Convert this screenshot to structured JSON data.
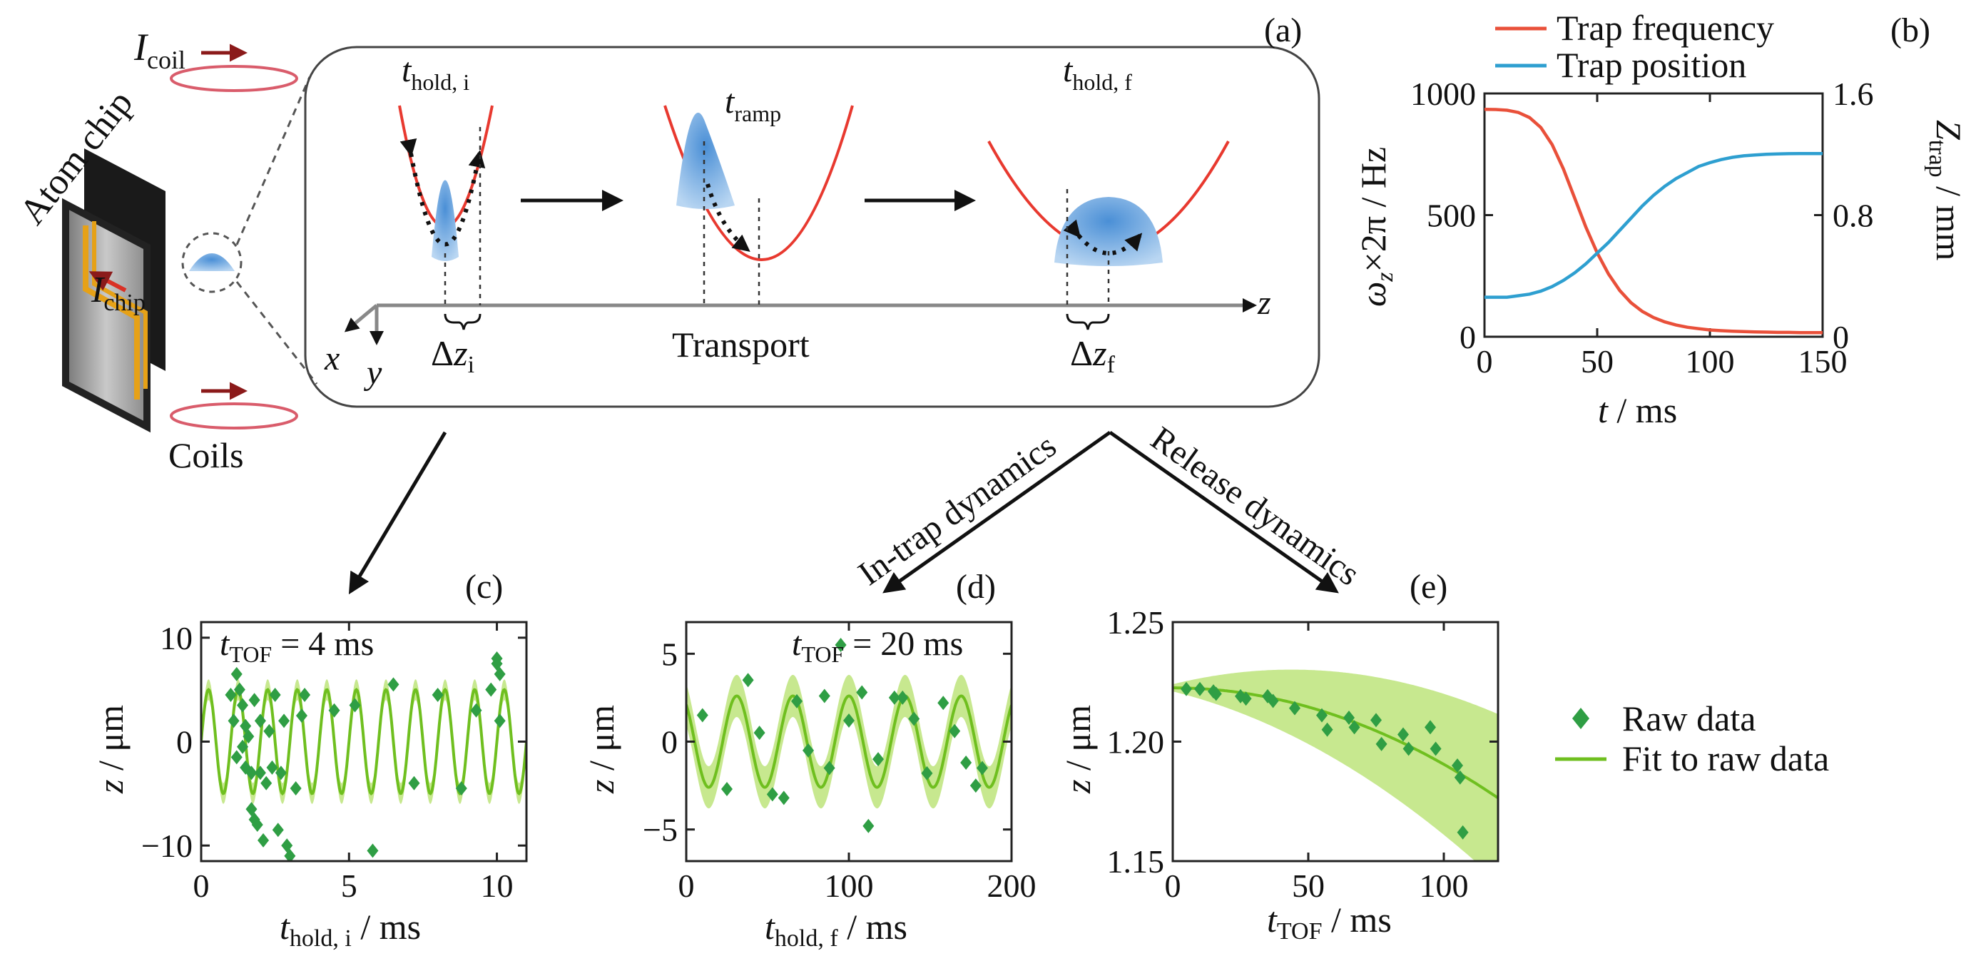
{
  "colors": {
    "trap_frequency": "#e9503a",
    "trap_position": "#2e9fd0",
    "data_point": "#2f9e44",
    "fit_line": "#6fbf1f",
    "fit_band": "#c7e88f",
    "parabola": "#e8392f",
    "cloud": "#5b9fdc",
    "coil": "#d95c6b",
    "coil_arrow": "#8b1a1a"
  },
  "schematic": {
    "coil_current": {
      "I": "I",
      "sub": "coil"
    },
    "chip_current": {
      "I": "I",
      "sub": "chip"
    },
    "atom_chip_label": "Atom chip",
    "coils_label": "Coils",
    "panel_label": "(a)",
    "t_hold_i": {
      "t": "t",
      "sub": "hold, i"
    },
    "t_ramp": {
      "t": "t",
      "sub": "ramp"
    },
    "t_hold_f": {
      "t": "t",
      "sub": "hold, f"
    },
    "delta_z_i": {
      "d": "Δ",
      "z": "z",
      "sub": "i"
    },
    "delta_z_f": {
      "d": "Δ",
      "z": "z",
      "sub": "f"
    },
    "transport_label": "Transport",
    "axis_x": "x",
    "axis_y": "y",
    "axis_z": "z",
    "in_trap_label": "In-trap dynamics",
    "release_label": "Release dynamics"
  },
  "legend_b": {
    "frequency": "Trap frequency",
    "position": "Trap position"
  },
  "legend_de": {
    "raw": "Raw data",
    "fit": "Fit to raw data"
  },
  "panels": {
    "b": {
      "label": "(b)",
      "ylabel_left": {
        "omega": "ω",
        "sub": "z",
        "rest": "×2π / Hz"
      },
      "ylabel_right": {
        "Z": "Z",
        "sub": "trap",
        "rest": " / mm"
      },
      "xlabel": {
        "t": "t",
        "rest": " / ms"
      }
    },
    "c": {
      "label": "(c)",
      "annot": {
        "t": "t",
        "sub": "TOF",
        "rest": " = 4 ms"
      },
      "ylabel": {
        "z": "z",
        "rest": " / μm"
      },
      "xlabel": {
        "t": "t",
        "sub": "hold, i",
        "rest": " / ms"
      }
    },
    "d": {
      "label": "(d)",
      "annot": {
        "t": "t",
        "sub": "TOF",
        "rest": " = 20 ms"
      },
      "ylabel": {
        "z": "z",
        "rest": " / μm"
      },
      "xlabel": {
        "t": "t",
        "sub": "hold, f",
        "rest": " / ms"
      }
    },
    "e": {
      "label": "(e)",
      "ylabel": {
        "z": "z",
        "rest": " / μm"
      },
      "xlabel": {
        "t": "t",
        "sub": "TOF",
        "rest": " / ms"
      }
    }
  },
  "chart_data": [
    {
      "id": "b",
      "type": "line",
      "xlabel": "t / ms",
      "ylabel": "ωz×2π / Hz",
      "y2label": "Ztrap / mm",
      "xlim": [
        0,
        150
      ],
      "ylim": [
        0,
        1000
      ],
      "y2lim": [
        0,
        1.6
      ],
      "xticks": [
        "0",
        "50",
        "100",
        "150"
      ],
      "yticks": [
        "0",
        "500",
        "1000"
      ],
      "y2ticks": [
        "0",
        "0.8",
        "1.6"
      ],
      "x": [
        0,
        5,
        10,
        15,
        20,
        25,
        30,
        35,
        40,
        45,
        50,
        55,
        60,
        65,
        70,
        75,
        80,
        85,
        90,
        95,
        100,
        105,
        110,
        115,
        120,
        125,
        130,
        135,
        140,
        145,
        150
      ],
      "series": [
        {
          "name": "Trap frequency",
          "axis": "left",
          "values": [
            935,
            934,
            931,
            922,
            901,
            860,
            790,
            690,
            570,
            450,
            345,
            258,
            190,
            140,
            104,
            79,
            61,
            48,
            39,
            33,
            28,
            25,
            23,
            21,
            20,
            19,
            18,
            18,
            17,
            17,
            17
          ]
        },
        {
          "name": "Trap position",
          "axis": "right",
          "values": [
            0.26,
            0.26,
            0.26,
            0.27,
            0.28,
            0.3,
            0.33,
            0.37,
            0.42,
            0.48,
            0.55,
            0.62,
            0.7,
            0.78,
            0.86,
            0.93,
            0.99,
            1.04,
            1.08,
            1.12,
            1.145,
            1.165,
            1.18,
            1.19,
            1.195,
            1.2,
            1.202,
            1.204,
            1.205,
            1.205,
            1.205
          ]
        }
      ]
    },
    {
      "id": "c",
      "type": "scatter",
      "xlabel": "thold, i / ms",
      "ylabel": "z / μm",
      "xlim": [
        0,
        11
      ],
      "ylim": [
        -11.5,
        11.5
      ],
      "xticks": [
        "0",
        "5",
        "10"
      ],
      "yticks": [
        "−10",
        "0",
        "10"
      ],
      "fit": {
        "amplitude": 5.0,
        "offset": 0,
        "period": 1.0,
        "phase": 0.0,
        "band": 1.0
      },
      "points": [
        [
          1.0,
          4.5
        ],
        [
          1.1,
          2.0
        ],
        [
          1.2,
          6.5
        ],
        [
          1.2,
          -1.5
        ],
        [
          1.3,
          5.0
        ],
        [
          1.4,
          3.5
        ],
        [
          1.4,
          -0.5
        ],
        [
          1.5,
          1.5
        ],
        [
          1.5,
          -2.5
        ],
        [
          1.6,
          0.5
        ],
        [
          1.7,
          -6.5
        ],
        [
          1.7,
          -3.0
        ],
        [
          1.8,
          -7.5
        ],
        [
          1.8,
          4.0
        ],
        [
          1.9,
          -8.0
        ],
        [
          2.0,
          -3.0
        ],
        [
          2.0,
          2.0
        ],
        [
          2.1,
          -9.5
        ],
        [
          2.2,
          -4.0
        ],
        [
          2.3,
          1.0
        ],
        [
          2.4,
          -2.5
        ],
        [
          2.5,
          4.5
        ],
        [
          2.6,
          -8.5
        ],
        [
          2.7,
          -3.0
        ],
        [
          2.8,
          2.0
        ],
        [
          2.9,
          -10.0
        ],
        [
          3.0,
          -11.0
        ],
        [
          3.2,
          -4.5
        ],
        [
          3.4,
          2.5
        ],
        [
          3.5,
          4.5
        ],
        [
          4.5,
          3.0
        ],
        [
          5.2,
          3.5
        ],
        [
          5.8,
          -10.5
        ],
        [
          6.5,
          5.5
        ],
        [
          7.2,
          -4.0
        ],
        [
          8.0,
          4.5
        ],
        [
          8.8,
          -4.5
        ],
        [
          9.3,
          3.0
        ],
        [
          9.8,
          5.0
        ],
        [
          10.0,
          7.5
        ],
        [
          10.0,
          8.0
        ],
        [
          10.1,
          2.0
        ],
        [
          10.1,
          6.5
        ]
      ]
    },
    {
      "id": "d",
      "type": "scatter",
      "xlabel": "thold, f / ms",
      "ylabel": "z / μm",
      "xlim": [
        0,
        200
      ],
      "ylim": [
        -6.8,
        6.8
      ],
      "xticks": [
        "0",
        "100",
        "200"
      ],
      "yticks": [
        "−5",
        "0",
        "5"
      ],
      "fit": {
        "amplitude": 2.6,
        "offset": 0,
        "period": 34.5,
        "phase": 2.2,
        "band": 1.2
      },
      "points": [
        [
          10,
          1.5
        ],
        [
          25,
          -2.7
        ],
        [
          38,
          3.5
        ],
        [
          45,
          0.5
        ],
        [
          53,
          -3.0
        ],
        [
          60,
          -3.2
        ],
        [
          68,
          2.3
        ],
        [
          75,
          -0.5
        ],
        [
          85,
          2.6
        ],
        [
          88,
          -1.5
        ],
        [
          95,
          5.5
        ],
        [
          100,
          1.2
        ],
        [
          108,
          2.8
        ],
        [
          112,
          -4.8
        ],
        [
          118,
          -1.0
        ],
        [
          128,
          2.5
        ],
        [
          133,
          2.5
        ],
        [
          140,
          1.3
        ],
        [
          148,
          -1.8
        ],
        [
          158,
          2.2
        ],
        [
          165,
          0.6
        ],
        [
          172,
          -1.2
        ],
        [
          178,
          -2.5
        ],
        [
          182,
          -1.5
        ]
      ]
    },
    {
      "id": "e",
      "type": "scatter",
      "xlabel": "tTOF / ms",
      "ylabel": "z / μm",
      "xlim": [
        0,
        120
      ],
      "ylim": [
        1.15,
        1.25
      ],
      "xticks": [
        "0",
        "50",
        "100"
      ],
      "yticks": [
        "1.15",
        "1.20",
        "1.25"
      ],
      "fit": {
        "z0": 1.2225,
        "curvature": 3.2e-06,
        "band_start": 0.0015,
        "band_growth": 0.00028
      },
      "points": [
        [
          5,
          1.222
        ],
        [
          10,
          1.222
        ],
        [
          15,
          1.221
        ],
        [
          16,
          1.22
        ],
        [
          25,
          1.219
        ],
        [
          27,
          1.218
        ],
        [
          35,
          1.219
        ],
        [
          37,
          1.217
        ],
        [
          45,
          1.214
        ],
        [
          55,
          1.211
        ],
        [
          57,
          1.205
        ],
        [
          65,
          1.21
        ],
        [
          67,
          1.206
        ],
        [
          75,
          1.209
        ],
        [
          77,
          1.199
        ],
        [
          85,
          1.203
        ],
        [
          87,
          1.197
        ],
        [
          95,
          1.206
        ],
        [
          97,
          1.197
        ],
        [
          105,
          1.19
        ],
        [
          106,
          1.185
        ],
        [
          107,
          1.162
        ]
      ]
    }
  ]
}
